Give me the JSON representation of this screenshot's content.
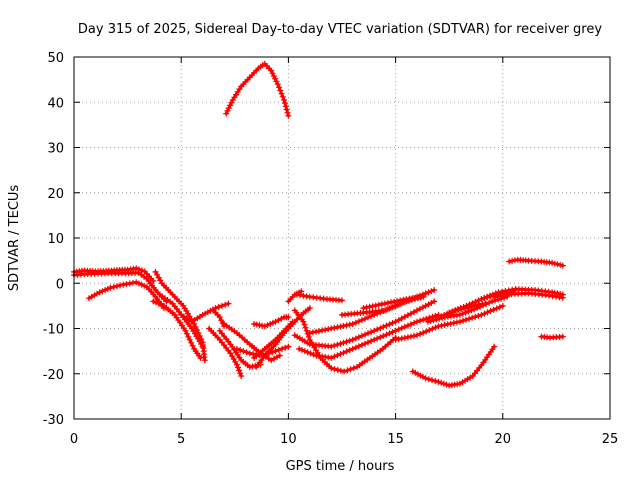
{
  "chart_data": {
    "type": "scatter",
    "title": "Day 315 of 2025, Sidereal Day-to-day VTEC variation (SDTVAR) for receiver grey",
    "xlabel": "GPS time / hours",
    "ylabel": "SDTVAR / TECUs",
    "xlim": [
      0,
      25
    ],
    "ylim": [
      -30,
      50
    ],
    "xticks": [
      0,
      5,
      10,
      15,
      20,
      25
    ],
    "yticks": [
      -30,
      -20,
      -10,
      0,
      10,
      20,
      30,
      40,
      50
    ],
    "grid": true,
    "marker": "plus",
    "color": "#ff0000",
    "series": [
      {
        "points": [
          [
            0.0,
            2.5
          ],
          [
            0.5,
            2.8
          ],
          [
            1.0,
            2.6
          ],
          [
            1.5,
            2.7
          ],
          [
            2.0,
            2.9
          ],
          [
            2.5,
            3.0
          ],
          [
            2.9,
            3.3
          ],
          [
            3.3,
            2.6
          ],
          [
            3.7,
            0.5
          ]
        ]
      },
      {
        "points": [
          [
            0.0,
            1.8
          ],
          [
            0.8,
            2.1
          ],
          [
            1.6,
            2.2
          ],
          [
            2.4,
            2.2
          ],
          [
            3.0,
            2.3
          ],
          [
            3.4,
            1.0
          ],
          [
            3.8,
            -1.5
          ],
          [
            4.3,
            -4.0
          ]
        ]
      },
      {
        "points": [
          [
            0.7,
            -3.3
          ],
          [
            1.2,
            -2.0
          ],
          [
            1.7,
            -1.0
          ],
          [
            2.3,
            -0.3
          ],
          [
            2.9,
            0.2
          ],
          [
            3.4,
            -0.8
          ],
          [
            3.8,
            -3.0
          ],
          [
            4.2,
            -5.5
          ]
        ]
      },
      {
        "points": [
          [
            3.8,
            2.5
          ],
          [
            4.1,
            0.0
          ],
          [
            4.6,
            -2.5
          ],
          [
            5.1,
            -5.0
          ],
          [
            5.6,
            -9.0
          ],
          [
            6.0,
            -13.0
          ],
          [
            6.1,
            -17.0
          ]
        ]
      },
      {
        "points": [
          [
            3.7,
            -4.0
          ],
          [
            4.2,
            -5.0
          ],
          [
            4.7,
            -7.0
          ],
          [
            5.2,
            -10.5
          ],
          [
            5.6,
            -14.5
          ],
          [
            5.9,
            -16.5
          ]
        ]
      },
      {
        "points": [
          [
            4.0,
            -2.5
          ],
          [
            4.6,
            -4.5
          ],
          [
            5.1,
            -7.5
          ],
          [
            5.5,
            -10.0
          ],
          [
            6.0,
            -14.0
          ]
        ]
      },
      {
        "points": [
          [
            5.0,
            -7.0
          ],
          [
            5.5,
            -8.5
          ],
          [
            6.0,
            -7.0
          ],
          [
            6.6,
            -5.5
          ],
          [
            7.2,
            -4.5
          ]
        ]
      },
      {
        "points": [
          [
            6.5,
            -6.0
          ],
          [
            6.8,
            -7.5
          ],
          [
            7.0,
            -9.5
          ]
        ]
      },
      {
        "points": [
          [
            6.3,
            -10.0
          ],
          [
            6.8,
            -12.5
          ],
          [
            7.3,
            -15.5
          ],
          [
            7.6,
            -18.0
          ],
          [
            7.8,
            -20.5
          ]
        ]
      },
      {
        "points": [
          [
            6.8,
            -10.5
          ],
          [
            7.3,
            -13.5
          ],
          [
            7.8,
            -17.0
          ],
          [
            8.2,
            -18.5
          ],
          [
            8.7,
            -18.0
          ]
        ]
      },
      {
        "points": [
          [
            7.0,
            -9.0
          ],
          [
            7.6,
            -11.0
          ],
          [
            8.2,
            -13.5
          ],
          [
            8.7,
            -15.5
          ],
          [
            9.2,
            -17.0
          ],
          [
            9.6,
            -16.0
          ]
        ]
      },
      {
        "points": [
          [
            7.6,
            -14.5
          ],
          [
            8.2,
            -15.5
          ],
          [
            8.8,
            -16.0
          ],
          [
            9.4,
            -15.0
          ],
          [
            10.0,
            -14.0
          ]
        ]
      },
      {
        "points": [
          [
            8.4,
            -16.5
          ],
          [
            8.9,
            -14.5
          ],
          [
            9.4,
            -12.5
          ],
          [
            9.8,
            -10.5
          ],
          [
            10.2,
            -8.5
          ]
        ]
      },
      {
        "points": [
          [
            8.5,
            -18.5
          ],
          [
            8.9,
            -16.0
          ],
          [
            9.4,
            -13.5
          ],
          [
            9.8,
            -11.0
          ],
          [
            10.2,
            -9.0
          ],
          [
            10.6,
            -7.0
          ],
          [
            11.0,
            -5.5
          ]
        ]
      },
      {
        "points": [
          [
            8.4,
            -9.0
          ],
          [
            8.9,
            -9.5
          ],
          [
            9.4,
            -8.5
          ],
          [
            9.8,
            -7.5
          ],
          [
            10.0,
            -7.5
          ]
        ]
      },
      {
        "points": [
          [
            10.0,
            -4.0
          ],
          [
            10.3,
            -2.5
          ],
          [
            10.6,
            -1.8
          ]
        ]
      },
      {
        "points": [
          [
            10.4,
            -2.5
          ],
          [
            11.0,
            -3.0
          ],
          [
            11.8,
            -3.5
          ],
          [
            12.5,
            -3.8
          ]
        ]
      },
      {
        "points": [
          [
            10.3,
            -6.0
          ],
          [
            10.7,
            -8.5
          ],
          [
            11.0,
            -12.5
          ],
          [
            11.5,
            -16.5
          ],
          [
            12.0,
            -18.8
          ],
          [
            12.6,
            -19.5
          ],
          [
            13.2,
            -18.5
          ],
          [
            13.8,
            -16.5
          ],
          [
            14.4,
            -14.5
          ],
          [
            15.0,
            -12.0
          ]
        ]
      },
      {
        "points": [
          [
            10.5,
            -14.5
          ],
          [
            11.3,
            -16.0
          ],
          [
            12.0,
            -16.5
          ],
          [
            13.0,
            -14.5
          ],
          [
            14.0,
            -12.5
          ],
          [
            15.0,
            -10.5
          ],
          [
            16.0,
            -8.5
          ],
          [
            17.0,
            -7.0
          ]
        ]
      },
      {
        "points": [
          [
            10.3,
            -11.5
          ],
          [
            11.0,
            -13.5
          ],
          [
            12.0,
            -14.0
          ],
          [
            13.0,
            -12.5
          ],
          [
            14.0,
            -10.5
          ],
          [
            15.0,
            -8.5
          ],
          [
            16.0,
            -6.0
          ],
          [
            16.8,
            -4.0
          ]
        ]
      },
      {
        "points": [
          [
            11.0,
            -11.0
          ],
          [
            12.0,
            -10.0
          ],
          [
            13.0,
            -9.0
          ],
          [
            14.0,
            -7.0
          ],
          [
            15.0,
            -5.0
          ],
          [
            16.0,
            -3.0
          ],
          [
            16.8,
            -1.5
          ]
        ]
      },
      {
        "points": [
          [
            12.5,
            -7.0
          ],
          [
            13.5,
            -6.5
          ],
          [
            14.5,
            -6.0
          ],
          [
            15.5,
            -4.0
          ],
          [
            16.3,
            -3.0
          ]
        ]
      },
      {
        "points": [
          [
            13.5,
            -5.5
          ],
          [
            14.5,
            -4.5
          ],
          [
            15.5,
            -3.5
          ],
          [
            16.2,
            -3.0
          ]
        ]
      },
      {
        "points": [
          [
            15.0,
            -12.5
          ],
          [
            16.0,
            -11.5
          ],
          [
            17.0,
            -9.5
          ],
          [
            18.0,
            -8.5
          ],
          [
            19.0,
            -7.0
          ],
          [
            20.0,
            -5.0
          ]
        ]
      },
      {
        "points": [
          [
            16.5,
            -8.5
          ],
          [
            17.3,
            -7.5
          ],
          [
            18.0,
            -7.0
          ],
          [
            18.8,
            -5.5
          ],
          [
            19.5,
            -4.0
          ],
          [
            20.2,
            -3.0
          ]
        ]
      },
      {
        "points": [
          [
            17.0,
            -7.5
          ],
          [
            17.8,
            -6.0
          ],
          [
            18.6,
            -5.0
          ],
          [
            19.2,
            -4.5
          ]
        ]
      },
      {
        "points": [
          [
            17.5,
            -6.5
          ],
          [
            18.3,
            -5.0
          ],
          [
            19.0,
            -3.5
          ],
          [
            19.7,
            -2.5
          ],
          [
            20.5,
            -1.8
          ]
        ]
      },
      {
        "points": [
          [
            19.0,
            -3.5
          ],
          [
            19.8,
            -2.0
          ],
          [
            20.6,
            -1.3
          ],
          [
            21.5,
            -1.5
          ],
          [
            22.3,
            -2.0
          ],
          [
            22.8,
            -2.5
          ]
        ]
      },
      {
        "points": [
          [
            19.6,
            -3.0
          ],
          [
            20.4,
            -2.4
          ],
          [
            21.2,
            -2.2
          ],
          [
            22.0,
            -2.6
          ],
          [
            22.8,
            -3.2
          ]
        ]
      },
      {
        "points": [
          [
            20.3,
            4.8
          ],
          [
            20.7,
            5.2
          ],
          [
            21.2,
            5.0
          ],
          [
            21.8,
            4.8
          ],
          [
            22.3,
            4.5
          ],
          [
            22.8,
            3.9
          ]
        ]
      },
      {
        "points": [
          [
            21.8,
            -11.8
          ],
          [
            22.2,
            -12.0
          ],
          [
            22.8,
            -11.8
          ]
        ]
      },
      {
        "points": [
          [
            15.8,
            -19.5
          ],
          [
            16.4,
            -21.0
          ],
          [
            17.0,
            -21.8
          ],
          [
            17.5,
            -22.6
          ],
          [
            18.0,
            -22.2
          ],
          [
            18.6,
            -20.5
          ],
          [
            19.1,
            -17.5
          ],
          [
            19.6,
            -14.0
          ]
        ]
      },
      {
        "points": [
          [
            7.1,
            37.5
          ],
          [
            7.4,
            40.5
          ],
          [
            7.8,
            43.5
          ],
          [
            8.2,
            45.5
          ],
          [
            8.6,
            47.5
          ],
          [
            8.9,
            48.5
          ],
          [
            9.2,
            47.0
          ],
          [
            9.5,
            44.0
          ],
          [
            9.8,
            40.5
          ],
          [
            10.0,
            37.0
          ]
        ]
      }
    ]
  }
}
